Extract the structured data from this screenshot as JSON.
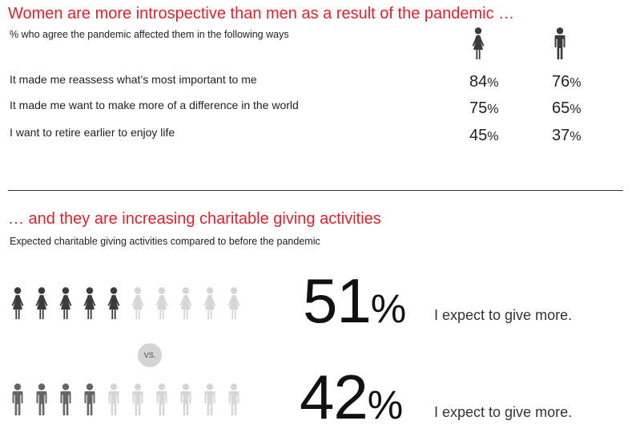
{
  "section1": {
    "title": "Women are more introspective than men as a result of the pandemic …",
    "subtitle": "% who agree the pandemic affected them in the following ways",
    "icons": {
      "women": "woman-icon",
      "men": "man-icon"
    },
    "unit": "%",
    "rows": [
      {
        "label": "It made me reassess what’s most important to me",
        "women": "84",
        "men": "76"
      },
      {
        "label": "It made me want to make more of a difference in the world",
        "women": "75",
        "men": "65"
      },
      {
        "label": "I want to retire earlier to enjoy life",
        "women": "45",
        "men": "37"
      }
    ]
  },
  "section2": {
    "title": "… and they are increasing charitable giving activities",
    "subtitle": "Expected charitable giving activities compared to before the pandemic",
    "vs_label": "VS.",
    "women": {
      "value": "51",
      "unit": "%",
      "caption": "I expect to give more.",
      "icon": "woman-icon",
      "filled": 5,
      "total": 10
    },
    "men": {
      "value": "42",
      "unit": "%",
      "caption": "I expect to give more.",
      "icon": "man-icon",
      "filled": 4,
      "total": 10
    }
  },
  "colors": {
    "accent": "#e4202b",
    "women_filled": "#3b3b3b",
    "men_filled": "#666666",
    "empty": "#d6d6d6"
  },
  "chart_data": [
    {
      "type": "table",
      "title": "Women are more introspective than men as a result of the pandemic …",
      "subtitle": "% who agree the pandemic affected them in the following ways",
      "categories": [
        "It made me reassess what’s most important to me",
        "It made me want to make more of a difference in the world",
        "I want to retire earlier to enjoy life"
      ],
      "series": [
        {
          "icon": "woman-icon",
          "values": [
            84,
            75,
            45
          ]
        },
        {
          "icon": "man-icon",
          "values": [
            76,
            65,
            37
          ]
        }
      ]
    },
    {
      "type": "bar",
      "title": "… and they are increasing charitable giving activities",
      "subtitle": "Expected charitable giving activities compared to before the pandemic",
      "categories": [
        "women",
        "men"
      ],
      "values": [
        51,
        42
      ],
      "unit": "%"
    }
  ]
}
